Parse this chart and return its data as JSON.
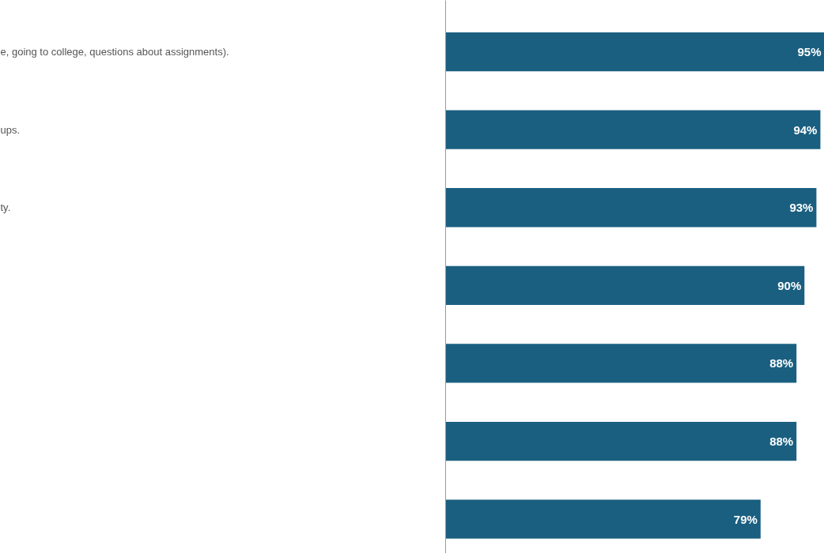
{
  "chart_data": {
    "type": "bar",
    "orientation": "horizontal",
    "categories": [
      "e, going to college, questions about assignments).",
      "ups.",
      "ty.",
      null,
      null,
      null,
      null
    ],
    "values": [
      95,
      94,
      93,
      90,
      88,
      88,
      79
    ],
    "color": "#1a5f80",
    "value_labels": [
      "95%",
      "94%",
      "93%",
      "90%",
      "88%",
      "88%",
      "79%"
    ]
  }
}
